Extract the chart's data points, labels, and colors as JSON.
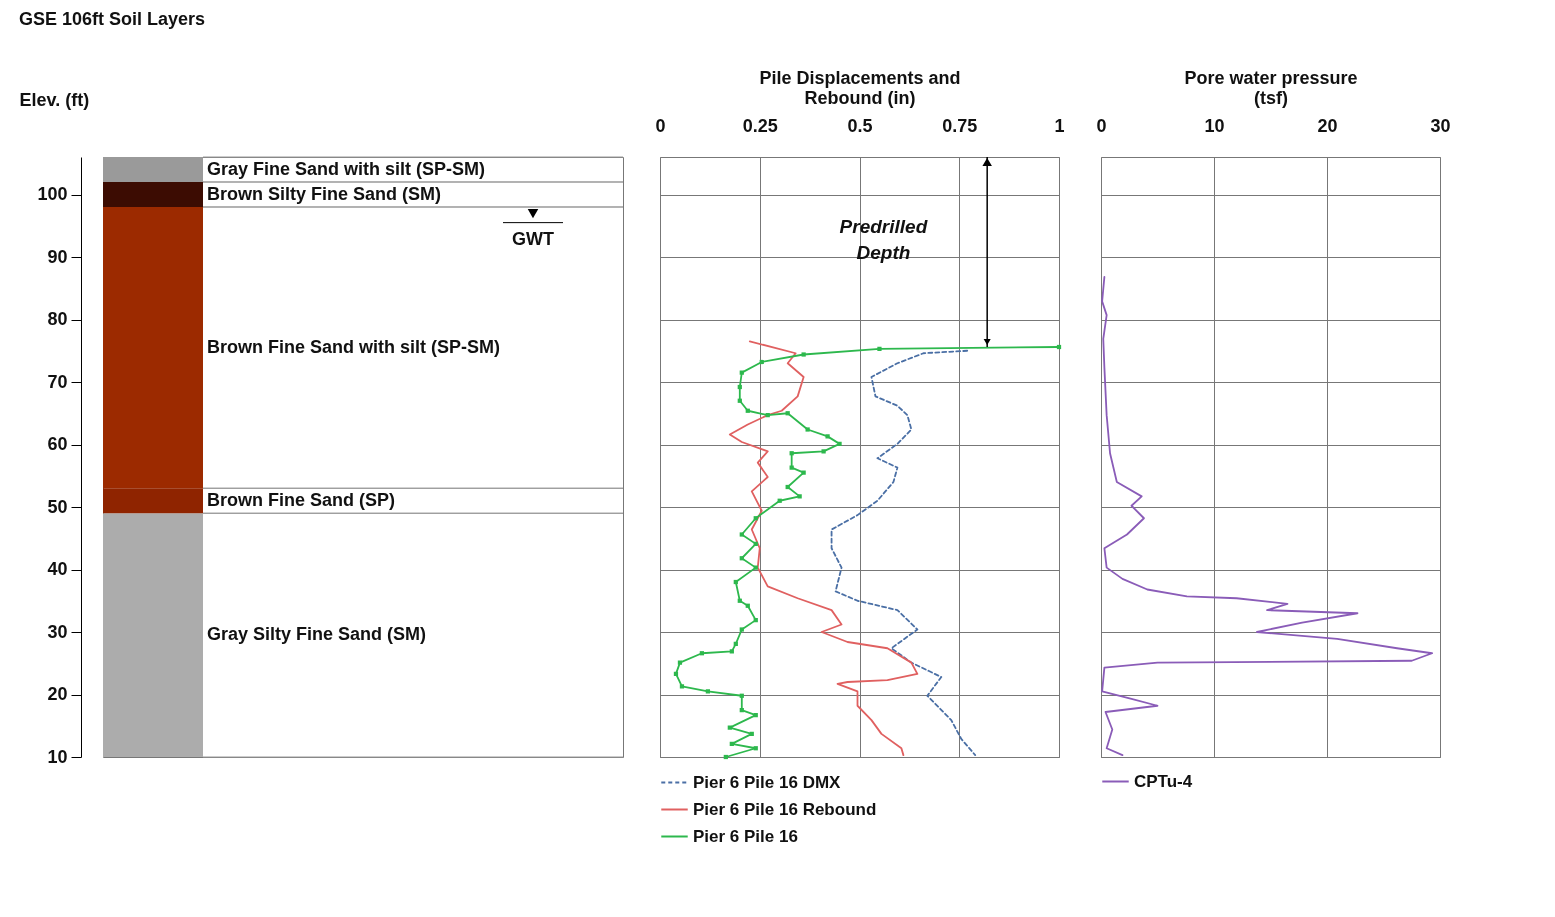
{
  "chart_data": [
    {
      "type": "bar",
      "title": "GSE 106ft  Soil Layers",
      "ylabel": "Elev. (ft)",
      "categories": [
        null
      ],
      "series": [
        {
          "name": "Gray Silty Fine Sand (SM)",
          "color": "#acacac",
          "base": [
            10
          ],
          "values": [
            39
          ]
        },
        {
          "name": "Brown Fine Sand (SP)",
          "color": "#8f2400",
          "base": [
            49
          ],
          "values": [
            4
          ]
        },
        {
          "name": "Brown Fine Sand with silt (SP-SM)",
          "color": "#9c2a00",
          "base": [
            53
          ],
          "values": [
            45
          ]
        },
        {
          "name": "Brown Silty Fine Sand (SM)",
          "color": "#3c0c02",
          "base": [
            98
          ],
          "values": [
            4
          ]
        },
        {
          "name": "Gray Fine Sand with silt (SP-SM)",
          "color": "#9a9a9a",
          "base": [
            102
          ],
          "values": [
            4
          ]
        }
      ],
      "ylim": [
        10,
        106
      ],
      "yticks": [
        10,
        20,
        30,
        40,
        50,
        60,
        70,
        80,
        90,
        100
      ],
      "tick_labels": "y",
      "ref_lines": [
        {
          "axis": "y",
          "value": 95.5,
          "label": "GWT",
          "color": "#000000"
        }
      ]
    },
    {
      "type": "line",
      "xlabel": "Pile Displacements and Rebound (in)",
      "xlim": [
        0,
        1
      ],
      "xticks": [
        0,
        0.25,
        0.5,
        0.75,
        1
      ],
      "ylim": [
        10,
        106
      ],
      "yticks": [
        10,
        20,
        30,
        40,
        50,
        60,
        70,
        80,
        90,
        100
      ],
      "tick_labels": "x",
      "grid": true,
      "legend": "bottom",
      "annotations": [
        "Predrilled Depth"
      ],
      "series": [
        {
          "name": "Pier 6 Pile 16 DMX",
          "color": "#4a6fa5",
          "line_style": "dashed",
          "marker": "none",
          "x": [
            0.77,
            0.66,
            0.595,
            0.53,
            0.54,
            0.595,
            0.62,
            0.63,
            0.595,
            0.545,
            0.595,
            0.585,
            0.545,
            0.495,
            0.43,
            0.43,
            0.455,
            0.44,
            0.495,
            0.595,
            0.645,
            0.58,
            0.63,
            0.705,
            0.67,
            0.73,
            0.755,
            0.79
          ],
          "values": [
            75.0,
            74.6,
            73.0,
            70.8,
            67.7,
            66.2,
            64.7,
            62.4,
            60.1,
            57.8,
            56.3,
            54.0,
            51.0,
            48.7,
            46.4,
            43.4,
            40.3,
            36.5,
            35.0,
            33.5,
            30.4,
            27.4,
            25.1,
            22.8,
            19.8,
            15.9,
            12.9,
            10.3
          ]
        },
        {
          "name": "Pier 6 Pile 16 Rebound",
          "color": "#e06060",
          "line_style": "solid",
          "marker": "none",
          "x": [
            0.225,
            0.34,
            0.32,
            0.36,
            0.345,
            0.305,
            0.27,
            0.22,
            0.175,
            0.205,
            0.27,
            0.245,
            0.27,
            0.23,
            0.255,
            0.23,
            0.25,
            0.245,
            0.27,
            0.345,
            0.43,
            0.455,
            0.405,
            0.47,
            0.57,
            0.63,
            0.645,
            0.57,
            0.47,
            0.445,
            0.495,
            0.495,
            0.53,
            0.555,
            0.605,
            0.61
          ],
          "values": [
            76.5,
            74.6,
            73.0,
            70.8,
            67.7,
            65.4,
            64.7,
            63.2,
            61.6,
            60.4,
            58.9,
            57.1,
            54.8,
            52.5,
            49.4,
            46.4,
            43.4,
            40.3,
            37.3,
            35.4,
            33.5,
            31.2,
            30.0,
            28.4,
            27.4,
            25.1,
            23.3,
            22.3,
            22.0,
            21.7,
            20.5,
            18.2,
            15.9,
            13.7,
            11.4,
            10.3
          ]
        },
        {
          "name": "Pier 6 Pile 16",
          "color": "#2db84d",
          "line_style": "solid",
          "marker": "square",
          "x": [
            1.0,
            0.55,
            0.36,
            0.255,
            0.205,
            0.2,
            0.2,
            0.22,
            0.27,
            0.32,
            0.37,
            0.42,
            0.45,
            0.41,
            0.33,
            0.33,
            0.36,
            0.32,
            0.35,
            0.3,
            0.24,
            0.205,
            0.24,
            0.205,
            0.24,
            0.19,
            0.2,
            0.22,
            0.24,
            0.205,
            0.19,
            0.18,
            0.105,
            0.05,
            0.04,
            0.055,
            0.12,
            0.205,
            0.205,
            0.24,
            0.175,
            0.23,
            0.18,
            0.24,
            0.165
          ],
          "values": [
            75.6,
            75.3,
            74.4,
            73.2,
            71.5,
            69.2,
            67.0,
            65.4,
            64.7,
            65.0,
            62.4,
            61.3,
            60.1,
            58.9,
            58.6,
            56.3,
            55.5,
            53.2,
            51.7,
            51.0,
            48.2,
            45.6,
            44.1,
            41.8,
            40.3,
            38.0,
            35.0,
            34.2,
            31.9,
            30.4,
            28.1,
            26.9,
            26.6,
            25.1,
            23.3,
            21.3,
            20.5,
            19.8,
            17.5,
            16.7,
            14.7,
            13.7,
            12.1,
            11.4,
            10.0
          ]
        }
      ]
    },
    {
      "type": "line",
      "xlabel": "Pore water pressure (tsf)",
      "xlim": [
        0,
        30
      ],
      "xticks": [
        0,
        10,
        20,
        30
      ],
      "ylim": [
        10,
        106
      ],
      "yticks": [
        10,
        20,
        30,
        40,
        50,
        60,
        70,
        80,
        90,
        100
      ],
      "tick_labels": "x",
      "grid": true,
      "legend": "bottom",
      "series": [
        {
          "name": "CPTu-4",
          "color": "#8a5cb8",
          "line_style": "solid",
          "marker": "none",
          "x": [
            0.3,
            0.1,
            0.5,
            0.2,
            0.3,
            0.5,
            0.8,
            1.4,
            3.6,
            2.7,
            3.8,
            2.3,
            0.3,
            0.5,
            1.9,
            4.1,
            7.6,
            12.0,
            16.5,
            14.7,
            22.7,
            17.8,
            13.8,
            20.9,
            26.2,
            29.3,
            27.5,
            5.0,
            0.3,
            0.1,
            2.7,
            5.0,
            0.4,
            1.0,
            0.5,
            1.9
          ],
          "values": [
            86.8,
            82.9,
            80.7,
            76.9,
            72.3,
            64.7,
            58.6,
            54.0,
            51.7,
            50.2,
            48.2,
            45.6,
            43.4,
            40.3,
            38.5,
            36.8,
            35.7,
            35.4,
            34.5,
            33.5,
            33.0,
            31.5,
            30.0,
            28.9,
            27.4,
            26.6,
            25.4,
            25.1,
            24.3,
            20.5,
            19.3,
            18.2,
            17.2,
            14.4,
            11.4,
            10.3
          ]
        }
      ]
    }
  ]
}
